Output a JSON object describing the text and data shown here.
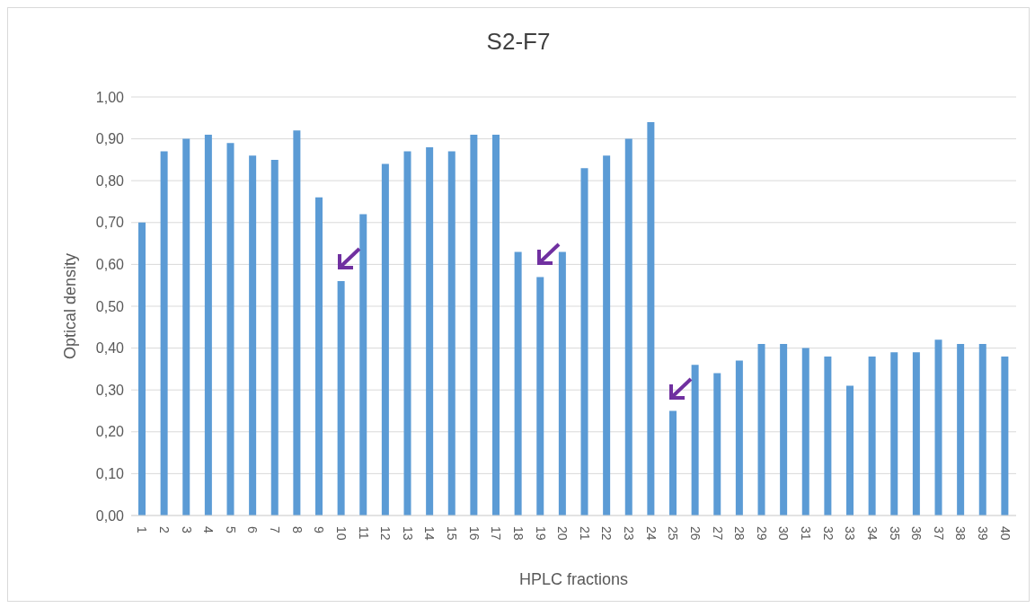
{
  "chart_data": {
    "type": "bar",
    "title": "S2-F7",
    "xlabel": "HPLC fractions",
    "ylabel": "Optical density",
    "categories": [
      "1",
      "2",
      "3",
      "4",
      "5",
      "6",
      "7",
      "8",
      "9",
      "10",
      "11",
      "12",
      "13",
      "14",
      "15",
      "16",
      "17",
      "18",
      "19",
      "20",
      "21",
      "22",
      "23",
      "24",
      "25",
      "26",
      "27",
      "28",
      "29",
      "30",
      "31",
      "32",
      "33",
      "34",
      "35",
      "36",
      "37",
      "38",
      "39",
      "40"
    ],
    "values": [
      0.7,
      0.87,
      0.9,
      0.91,
      0.89,
      0.86,
      0.85,
      0.92,
      0.76,
      0.56,
      0.72,
      0.84,
      0.87,
      0.88,
      0.87,
      0.91,
      0.91,
      0.63,
      0.57,
      0.63,
      0.83,
      0.86,
      0.9,
      0.94,
      0.25,
      0.36,
      0.34,
      0.37,
      0.41,
      0.41,
      0.4,
      0.38,
      0.31,
      0.38,
      0.39,
      0.39,
      0.42,
      0.41,
      0.41,
      0.38
    ],
    "color": "#5b9bd5",
    "ylim": [
      0,
      1
    ],
    "yticks": [
      {
        "value": 0,
        "label": "0,00"
      },
      {
        "value": 0.1,
        "label": "0,10"
      },
      {
        "value": 0.2,
        "label": "0,20"
      },
      {
        "value": 0.3,
        "label": "0,30"
      },
      {
        "value": 0.4,
        "label": "0,40"
      },
      {
        "value": 0.5,
        "label": "0,50"
      },
      {
        "value": 0.6,
        "label": "0,60"
      },
      {
        "value": 0.7,
        "label": "0,70"
      },
      {
        "value": 0.8,
        "label": "0,80"
      },
      {
        "value": 0.9,
        "label": "0,90"
      },
      {
        "value": 1,
        "label": "1,00"
      }
    ],
    "grid": "y"
  }
}
